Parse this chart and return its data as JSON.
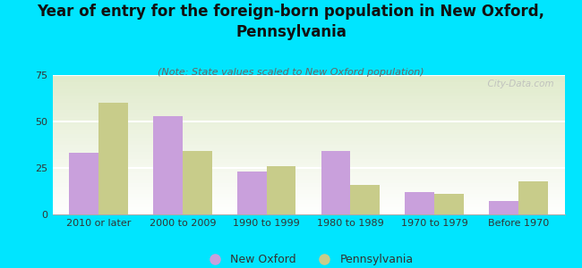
{
  "title": "Year of entry for the foreign-born population in New Oxford,\nPennsylvania",
  "subtitle": "(Note: State values scaled to New Oxford population)",
  "categories": [
    "2010 or later",
    "2000 to 2009",
    "1990 to 1999",
    "1980 to 1989",
    "1970 to 1979",
    "Before 1970"
  ],
  "new_oxford": [
    33,
    53,
    23,
    34,
    12,
    7
  ],
  "pennsylvania": [
    60,
    34,
    26,
    16,
    11,
    18
  ],
  "color_new_oxford": "#c9a0dc",
  "color_pennsylvania": "#c8cc8a",
  "background_color": "#00e5ff",
  "ylim": [
    0,
    75
  ],
  "yticks": [
    0,
    25,
    50,
    75
  ],
  "bar_width": 0.35,
  "title_fontsize": 12,
  "subtitle_fontsize": 8,
  "legend_fontsize": 9,
  "tick_fontsize": 8,
  "watermark": "  City-Data.com"
}
